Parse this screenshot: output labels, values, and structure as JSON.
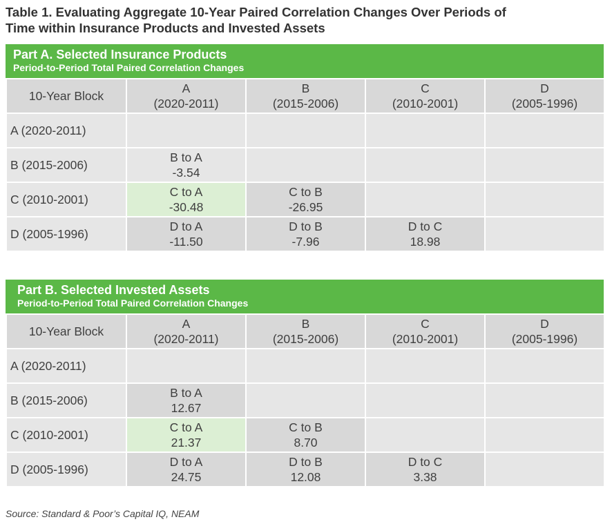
{
  "title": {
    "line1": "Table 1. Evaluating Aggregate 10-Year Paired Correlation Changes Over Periods of",
    "line2": "Time within Insurance Products and Invested Assets"
  },
  "columns": [
    {
      "letter": "A",
      "range": "(2020-2011)"
    },
    {
      "letter": "B",
      "range": "(2015-2006)"
    },
    {
      "letter": "C",
      "range": "(2010-2001)"
    },
    {
      "letter": "D",
      "range": "(2005-1996)"
    }
  ],
  "corner_label": "10-Year Block",
  "row_labels": [
    "A (2020-2011)",
    "B (2015-2006)",
    "C (2010-2001)",
    "D (2005-1996)"
  ],
  "part_a": {
    "title": "Part A. Selected Insurance Products",
    "subtitle": "Period-to-Period Total Paired Correlation Changes",
    "cells": {
      "b_a": {
        "label": "B to A",
        "value": "-3.54"
      },
      "c_a": {
        "label": "C to A",
        "value": "-30.48"
      },
      "c_b": {
        "label": "C to B",
        "value": "-26.95"
      },
      "d_a": {
        "label": "D to A",
        "value": "-11.50"
      },
      "d_b": {
        "label": "D to B",
        "value": "-7.96"
      },
      "d_c": {
        "label": "D to C",
        "value": "18.98"
      }
    }
  },
  "part_b": {
    "title": "Part B. Selected Invested Assets",
    "subtitle": "Period-to-Period Total Paired Correlation Changes",
    "cells": {
      "b_a": {
        "label": "B to A",
        "value": "12.67"
      },
      "c_a": {
        "label": "C to A",
        "value": "21.37"
      },
      "c_b": {
        "label": "C to B",
        "value": "8.70"
      },
      "d_a": {
        "label": "D to A",
        "value": "24.75"
      },
      "d_b": {
        "label": "D to B",
        "value": "12.08"
      },
      "d_c": {
        "label": "D to C",
        "value": "3.38"
      }
    }
  },
  "source": "Source: Standard & Poor’s Capital IQ, NEAM",
  "colors": {
    "header_green": "#5bb847",
    "highlight_green": "#dcefd4",
    "cell_gray": "#e6e6e6"
  }
}
